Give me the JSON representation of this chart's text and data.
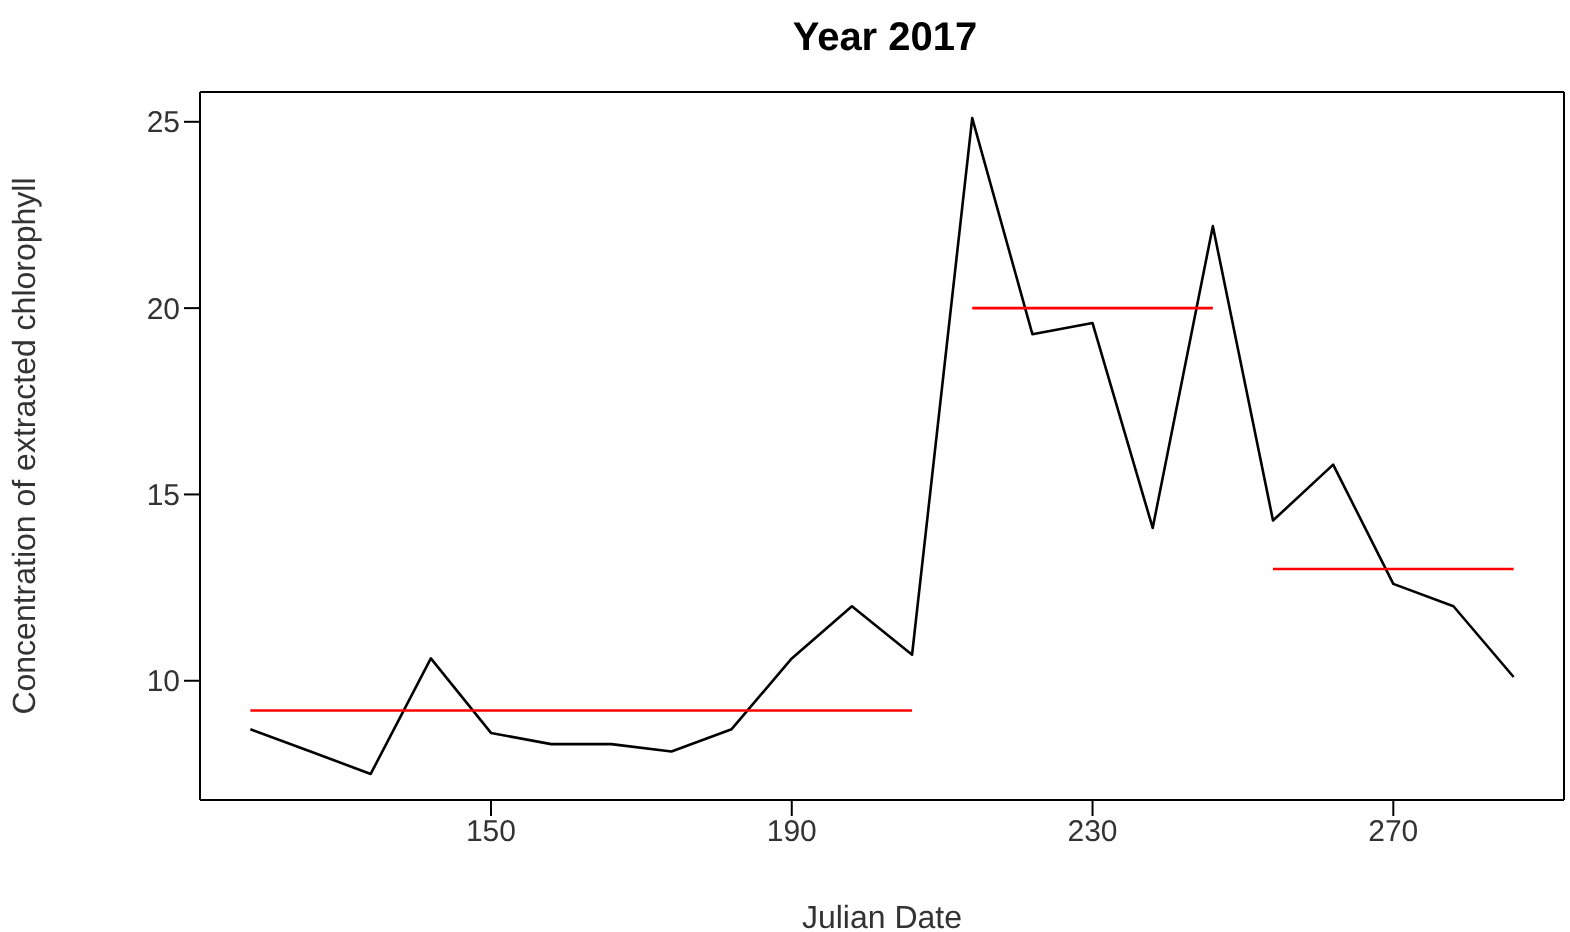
{
  "chart_data": {
    "type": "line",
    "title": "Year 2017",
    "xlabel": "Julian Date",
    "ylabel": "Concentration of extracted chlorophyll",
    "xlim": [
      111.3,
      292.7
    ],
    "xticks": [
      150,
      190,
      230,
      270
    ],
    "ylim": [
      6.8,
      25.8
    ],
    "yticks": [
      10,
      15,
      20,
      25
    ],
    "marker": "none",
    "series": [
      {
        "color": "#000000",
        "x": [
          118,
          126,
          134,
          142,
          150,
          158,
          166,
          174,
          182,
          190,
          198,
          206,
          214,
          222,
          230,
          238,
          246,
          254,
          262,
          270,
          278,
          286
        ],
        "values": [
          8.7,
          8.1,
          7.5,
          10.6,
          8.6,
          8.3,
          8.3,
          8.1,
          8.7,
          10.6,
          12,
          10.7,
          25.1,
          19.3,
          19.6,
          14.1,
          22.2,
          14.3,
          15.8,
          12.6,
          12,
          10.1
        ]
      },
      {
        "color": "#ff0000",
        "x": [
          118,
          206
        ],
        "values": [
          9.2,
          9.2
        ]
      },
      {
        "color": "#ff0000",
        "x": [
          214,
          246
        ],
        "values": [
          20,
          20
        ]
      },
      {
        "color": "#ff0000",
        "x": [
          254,
          286
        ],
        "values": [
          13,
          13
        ]
      }
    ]
  }
}
